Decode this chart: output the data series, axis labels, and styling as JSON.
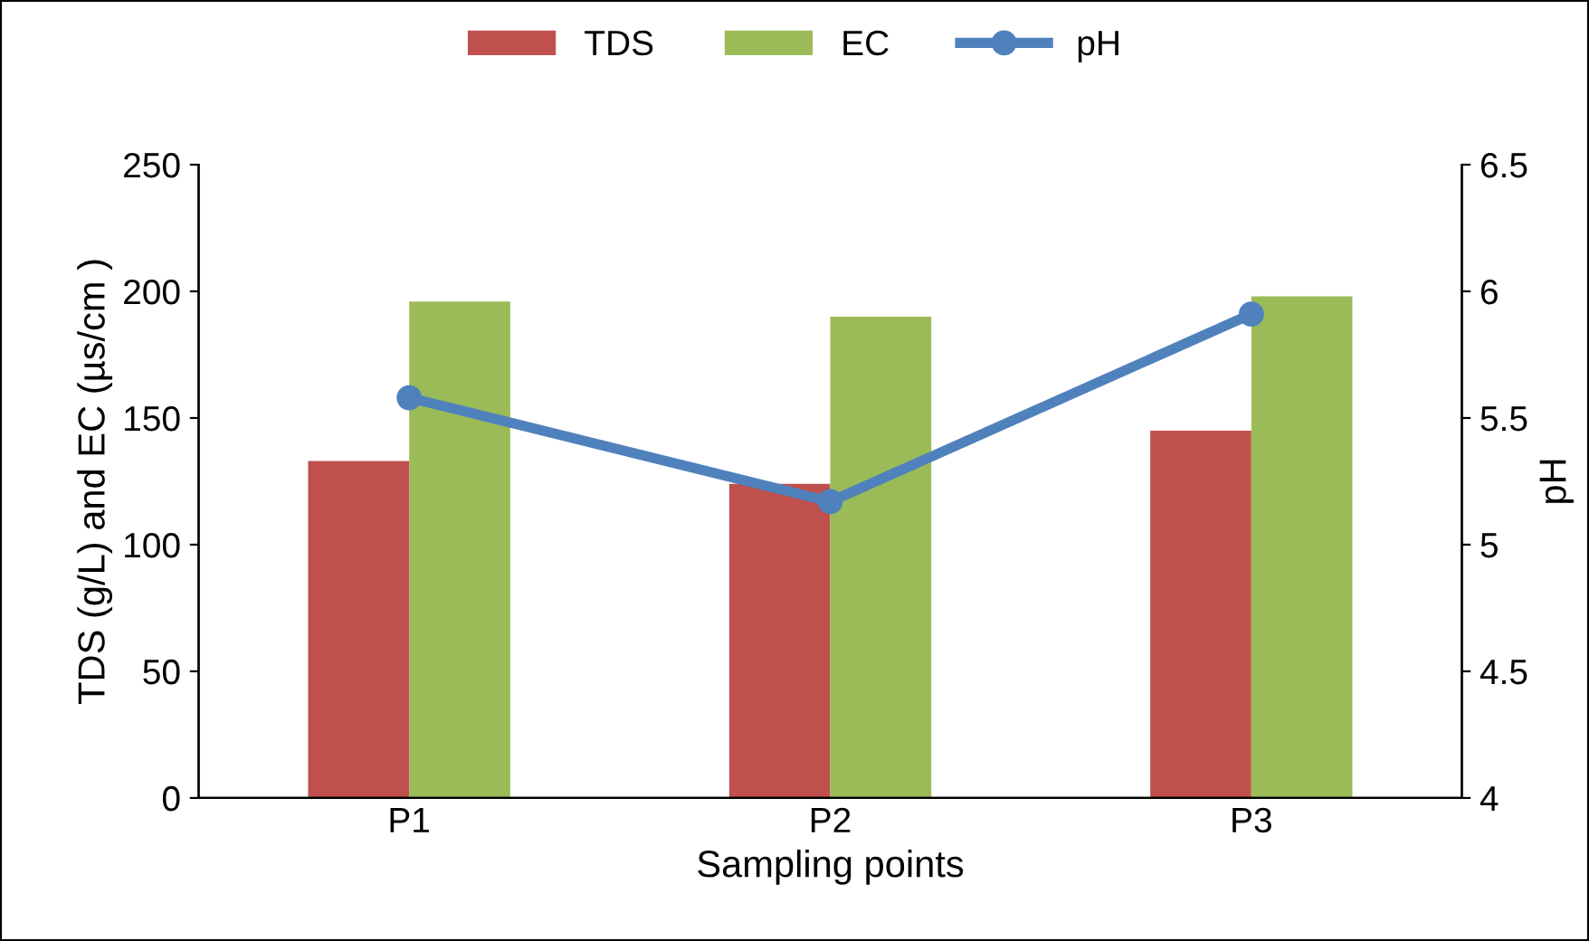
{
  "chart_data": {
    "type": "bar",
    "categories": [
      "P1",
      "P2",
      "P3"
    ],
    "xlabel": "Sampling points",
    "ylabel": "TDS (g/L) and EC (µs/cm )",
    "y2label": "pH",
    "series": [
      {
        "name": "TDS",
        "color": "#c0504d",
        "values": [
          133,
          124,
          145
        ]
      },
      {
        "name": "EC",
        "color": "#9bbb59",
        "values": [
          196,
          190,
          198
        ]
      },
      {
        "name": "pH",
        "type": "line",
        "axis": "y2",
        "color": "#4f81bd",
        "marker": "circle",
        "values": [
          5.58,
          5.17,
          5.91
        ]
      }
    ],
    "ylim": [
      0,
      250
    ],
    "yticks": [
      0,
      50,
      100,
      150,
      200,
      250
    ],
    "y2lim": [
      4,
      6.5
    ],
    "y2ticks": [
      4,
      4.5,
      5,
      5.5,
      6,
      6.5
    ],
    "grid": false,
    "legend": "top"
  }
}
